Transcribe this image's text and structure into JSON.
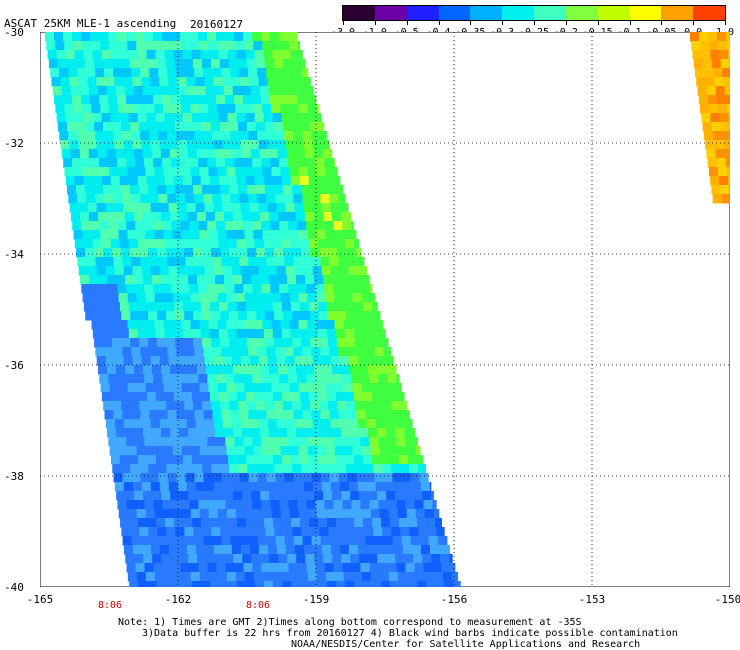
{
  "header": {
    "title": "ASCAT 25KM MLE-1 ascending",
    "date": "20160127"
  },
  "colorbar": {
    "labels": [
      "-3.0",
      "-1.0",
      "-0.5",
      "-0.4",
      "-0.35",
      "-0.3",
      "-0.25",
      "-0.2",
      "-0.15",
      "-0.1",
      "-0.05",
      "0.0",
      "1.0"
    ],
    "colors": [
      "#2b0030",
      "#6a00a8",
      "#1f1fff",
      "#0066ff",
      "#00b0ff",
      "#00f0f0",
      "#40ffc0",
      "#80ff40",
      "#c0ff00",
      "#ffff00",
      "#ffa000",
      "#ff4000"
    ]
  },
  "axes": {
    "x_ticks": [
      "-165",
      "-162",
      "-159",
      "-156",
      "-153",
      "-150"
    ],
    "y_ticks": [
      "-30",
      "-32",
      "-34",
      "-36",
      "-38",
      "-40"
    ],
    "lon_range": [
      -165,
      -150
    ],
    "lat_range": [
      -40,
      -30
    ]
  },
  "pass_times": [
    "8:06",
    "8:06"
  ],
  "notes": {
    "line1": "Note: 1) Times are GMT 2)Times along bottom correspond to measurement at -35S",
    "line2": "3)Data buffer is 22 hrs from 20160127 4) Black wind barbs indicate possible contamination",
    "line3": "NOAA/NESDIS/Center for Satellite Applications and Research"
  }
}
